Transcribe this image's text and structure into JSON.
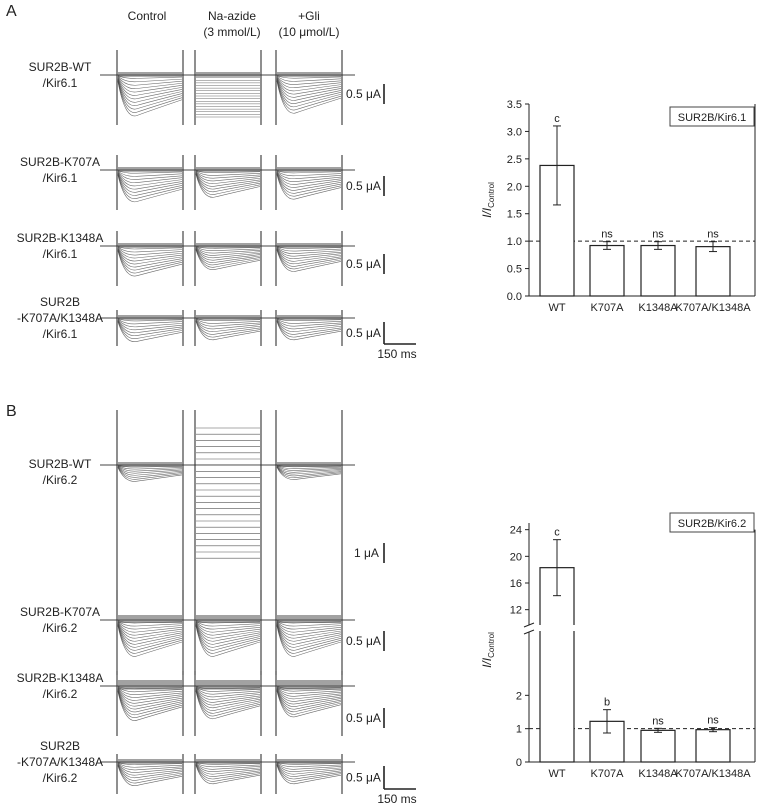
{
  "panels": [
    {
      "letter": "A",
      "headers": [
        [
          "Control"
        ],
        [
          "Na-azide",
          "(3 mmol/L)"
        ],
        [
          "+Gli",
          "(10 μmol/L)"
        ]
      ],
      "rows": [
        {
          "label": [
            "SUR2B-WT",
            "/Kir6.1"
          ],
          "scale": "0.5 μA"
        },
        {
          "label": [
            "SUR2B-K707A",
            "/Kir6.1"
          ],
          "scale": "0.5 μA"
        },
        {
          "label": [
            "SUR2B-K1348A",
            "/Kir6.1"
          ],
          "scale": "0.5 μA"
        },
        {
          "label": [
            "SUR2B",
            "-K707A/K1348A",
            "/Kir6.1"
          ],
          "scale": "0.5 μA"
        }
      ],
      "time_scale": "150 ms"
    },
    {
      "letter": "B",
      "rows": [
        {
          "label": [
            "SUR2B-WT",
            "/Kir6.2"
          ],
          "scale": "1 μA"
        },
        {
          "label": [
            "SUR2B-K707A",
            "/Kir6.2"
          ],
          "scale": "0.5 μA"
        },
        {
          "label": [
            "SUR2B-K1348A",
            "/Kir6.2"
          ],
          "scale": "0.5 μA"
        },
        {
          "label": [
            "SUR2B",
            "-K707A/K1348A",
            "/Kir6.2"
          ],
          "scale": "0.5 μA"
        }
      ],
      "time_scale": "150 ms"
    }
  ],
  "chart_data": [
    {
      "type": "bar",
      "legend_box": "SUR2B/Kir6.1",
      "ylabel": "I/I",
      "ylabel_subscript": "Control",
      "categories": [
        "WT",
        "K707A",
        "K1348A",
        "K707A/K1348A"
      ],
      "values": [
        2.38,
        0.92,
        0.92,
        0.9
      ],
      "errors": [
        0.72,
        0.07,
        0.07,
        0.09
      ],
      "annotations": [
        "c",
        "ns",
        "ns",
        "ns"
      ],
      "ylim": [
        0,
        3.5
      ],
      "yticks": [
        "0.0",
        "0.5",
        "1.0",
        "1.5",
        "2.0",
        "2.5",
        "3.0",
        "3.5"
      ],
      "reference_line": 1.0
    },
    {
      "type": "bar",
      "legend_box": "SUR2B/Kir6.2",
      "ylabel": "I/I",
      "ylabel_subscript": "Control",
      "categories": [
        "WT",
        "K707A",
        "K1348A",
        "K707A/K1348A"
      ],
      "values": [
        18.3,
        1.22,
        0.95,
        0.97
      ],
      "errors": [
        4.2,
        0.35,
        0.06,
        0.06
      ],
      "annotations": [
        "c",
        "b",
        "ns",
        "ns"
      ],
      "broken_axis": {
        "lower": [
          0,
          2.4
        ],
        "upper": [
          10,
          25
        ]
      },
      "yticks": [
        "0",
        "1",
        "2",
        "12",
        "16",
        "20",
        "24"
      ],
      "reference_line": 1.0
    }
  ]
}
